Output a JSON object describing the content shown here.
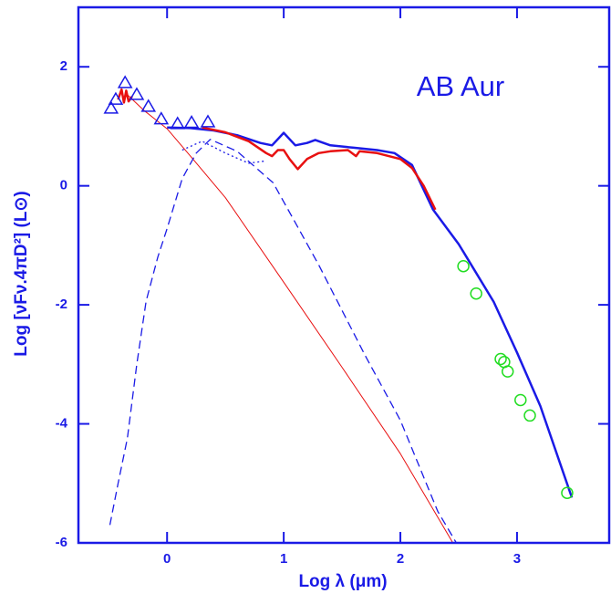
{
  "chart_data": {
    "type": "line",
    "title": "AB Aur",
    "x_label": "Log λ  (μm)",
    "y_label": "Log [νFν.4πD²]  (L⊙)",
    "xlim": [
      -0.76,
      3.79
    ],
    "ylim": [
      -6,
      3
    ],
    "xticks": [
      0,
      1,
      2,
      3
    ],
    "yticks": [
      -6,
      -4,
      -2,
      0,
      2
    ],
    "axis_color": "#1a1ae6",
    "series": [
      {
        "type": "line",
        "style": "solid",
        "width": 2.5,
        "color": "#1a1ae6",
        "x": [
          0,
          0.2,
          0.4,
          0.6,
          0.8,
          0.9,
          1.0,
          1.1,
          1.2,
          1.27,
          1.4,
          1.6,
          1.8,
          1.95,
          2.1,
          2.28,
          2.5,
          2.8,
          3.0,
          3.2,
          3.47
        ],
        "values": [
          0.98,
          0.97,
          0.93,
          0.85,
          0.72,
          0.68,
          0.89,
          0.68,
          0.72,
          0.77,
          0.68,
          0.64,
          0.6,
          0.55,
          0.35,
          -0.4,
          -0.98,
          -1.95,
          -2.8,
          -3.7,
          -5.24
        ]
      },
      {
        "type": "line",
        "style": "solid",
        "width": 2.5,
        "color": "#e81010",
        "x": [
          -0.42,
          -0.39,
          -0.37,
          -0.35,
          -0.33,
          -0.3,
          null,
          0.3,
          0.5,
          0.7,
          0.85,
          0.9,
          0.95,
          1.0,
          1.05,
          1.12,
          1.2,
          1.3,
          1.4,
          1.55,
          1.62,
          1.65,
          1.8,
          2.0,
          2.1,
          2.2,
          2.3
        ],
        "values": [
          1.45,
          1.62,
          1.4,
          1.6,
          1.42,
          1.5,
          null,
          0.98,
          0.9,
          0.75,
          0.55,
          0.5,
          0.6,
          0.6,
          0.45,
          0.28,
          0.45,
          0.55,
          0.58,
          0.6,
          0.5,
          0.58,
          0.55,
          0.45,
          0.3,
          0.0,
          -0.4
        ]
      },
      {
        "type": "line",
        "style": "solid",
        "width": 1,
        "color": "#e81010",
        "x": [
          -0.35,
          -0.2,
          0,
          0.2,
          0.5,
          1.0,
          1.5,
          2.0,
          2.45
        ],
        "values": [
          1.55,
          1.27,
          0.96,
          0.5,
          -0.2,
          -1.62,
          -3.05,
          -4.5,
          -6.0
        ]
      },
      {
        "type": "line",
        "style": "dashed",
        "width": 1.3,
        "color": "#1a1ae6",
        "x": [
          -0.49,
          -0.42,
          -0.34,
          -0.26,
          -0.18,
          -0.08,
          0,
          0.13,
          0.25,
          0.37,
          0.6,
          0.91,
          1.3,
          1.7,
          2.0,
          2.32,
          2.48
        ],
        "values": [
          -5.7,
          -5.0,
          -4.24,
          -3.0,
          -1.94,
          -1.2,
          -0.72,
          0.12,
          0.55,
          0.78,
          0.58,
          0.05,
          -1.33,
          -2.86,
          -3.94,
          -5.47,
          -6.0
        ]
      },
      {
        "type": "line",
        "style": "dotted",
        "width": 1.3,
        "color": "#1a1ae6",
        "x": [
          0.13,
          0.3,
          0.5,
          0.7,
          0.85
        ],
        "values": [
          0.6,
          0.75,
          0.55,
          0.38,
          0.42
        ]
      },
      {
        "type": "scatter",
        "marker": "triangle",
        "color": "#1a1ae6",
        "x": [
          -0.48,
          -0.44,
          -0.36,
          -0.26,
          -0.16,
          -0.05,
          0.09,
          0.21,
          0.35
        ],
        "values": [
          1.3,
          1.45,
          1.73,
          1.53,
          1.33,
          1.12,
          1.04,
          1.06,
          1.07
        ]
      },
      {
        "type": "scatter",
        "marker": "circle",
        "color": "#22dd22",
        "x": [
          2.54,
          2.65,
          2.86,
          2.89,
          2.92,
          3.03,
          3.11,
          3.43
        ],
        "values": [
          -1.35,
          -1.81,
          -2.91,
          -2.96,
          -3.12,
          -3.6,
          -3.86,
          -5.16
        ]
      }
    ]
  }
}
